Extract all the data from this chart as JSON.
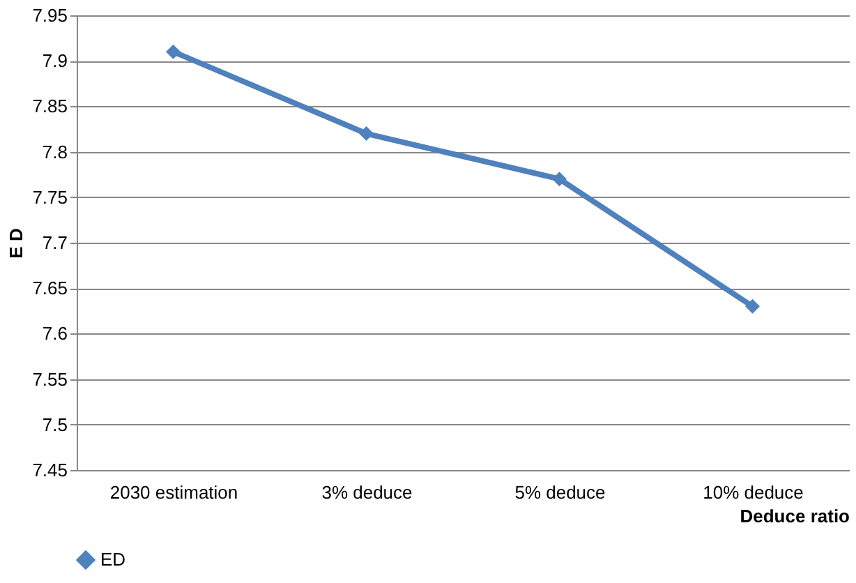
{
  "chart_data": {
    "type": "line",
    "xlabel": "Deduce ratio",
    "ylabel": "E D",
    "categories": [
      "2030 estimation",
      "3% deduce",
      "5% deduce",
      "10% deduce"
    ],
    "series": [
      {
        "name": "ED",
        "color": "#4f81bd",
        "values": [
          7.91,
          7.82,
          7.77,
          7.63
        ]
      }
    ],
    "ylim": [
      7.45,
      7.95
    ],
    "yticks": [
      7.45,
      7.5,
      7.55,
      7.6,
      7.65,
      7.7,
      7.75,
      7.8,
      7.85,
      7.9,
      7.95
    ],
    "grid": "y",
    "legend": "bottom",
    "marker": "diamond",
    "line_style": "solid"
  }
}
